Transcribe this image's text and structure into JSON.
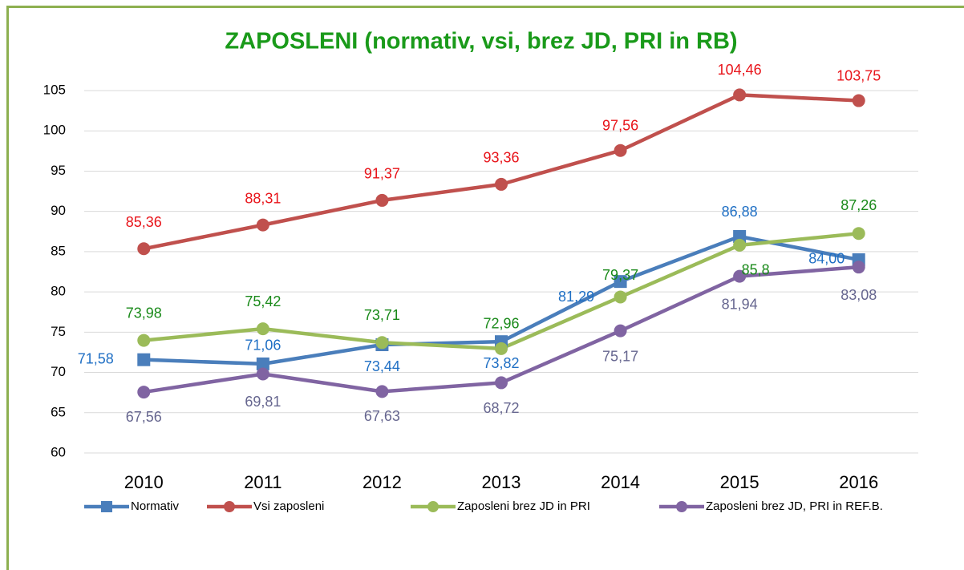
{
  "chart_data": {
    "type": "line",
    "title": "ZAPOSLENI (normativ, vsi, brez JD, PRI in RB)",
    "categories": [
      "2010",
      "2011",
      "2012",
      "2013",
      "2014",
      "2015",
      "2016"
    ],
    "series": [
      {
        "name": "Normativ",
        "color": "#4a7ebb",
        "label_color": "#1f6fc4",
        "marker": "square",
        "values": [
          71.58,
          71.06,
          73.44,
          73.82,
          81.29,
          86.88,
          84.0
        ],
        "value_labels": [
          "71,58",
          "71,06",
          "73,44",
          "73,82",
          "81,29",
          "86,88",
          "84,00"
        ]
      },
      {
        "name": "Vsi zaposleni",
        "color": "#c0504d",
        "label_color": "#e8141a",
        "marker": "circle",
        "values": [
          85.36,
          88.31,
          91.37,
          93.36,
          97.56,
          104.46,
          103.75
        ],
        "value_labels": [
          "85,36",
          "88,31",
          "91,37",
          "93,36",
          "97,56",
          "104,46",
          "103,75"
        ]
      },
      {
        "name": "Zaposleni brez JD in PRI",
        "color": "#9bbb59",
        "label_color": "#1a8a1a",
        "marker": "circle",
        "values": [
          73.98,
          75.42,
          73.71,
          72.96,
          79.37,
          85.8,
          87.26
        ],
        "value_labels": [
          "73,98",
          "75,42",
          "73,71",
          "72,96",
          "79,37",
          "85,8",
          "87,26"
        ]
      },
      {
        "name": "Zaposleni brez JD, PRI in REF.B.",
        "color": "#8064a2",
        "label_color": "#66668f",
        "marker": "circle",
        "values": [
          67.56,
          69.81,
          67.63,
          68.72,
          75.17,
          81.94,
          83.08
        ],
        "value_labels": [
          "67,56",
          "69,81",
          "67,63",
          "68,72",
          "75,17",
          "81,94",
          "83,08"
        ]
      }
    ],
    "ylim": [
      60,
      105
    ],
    "yticks": [
      60,
      65,
      70,
      75,
      80,
      85,
      90,
      95,
      100,
      105
    ],
    "grid": true,
    "legend": "bottom"
  }
}
